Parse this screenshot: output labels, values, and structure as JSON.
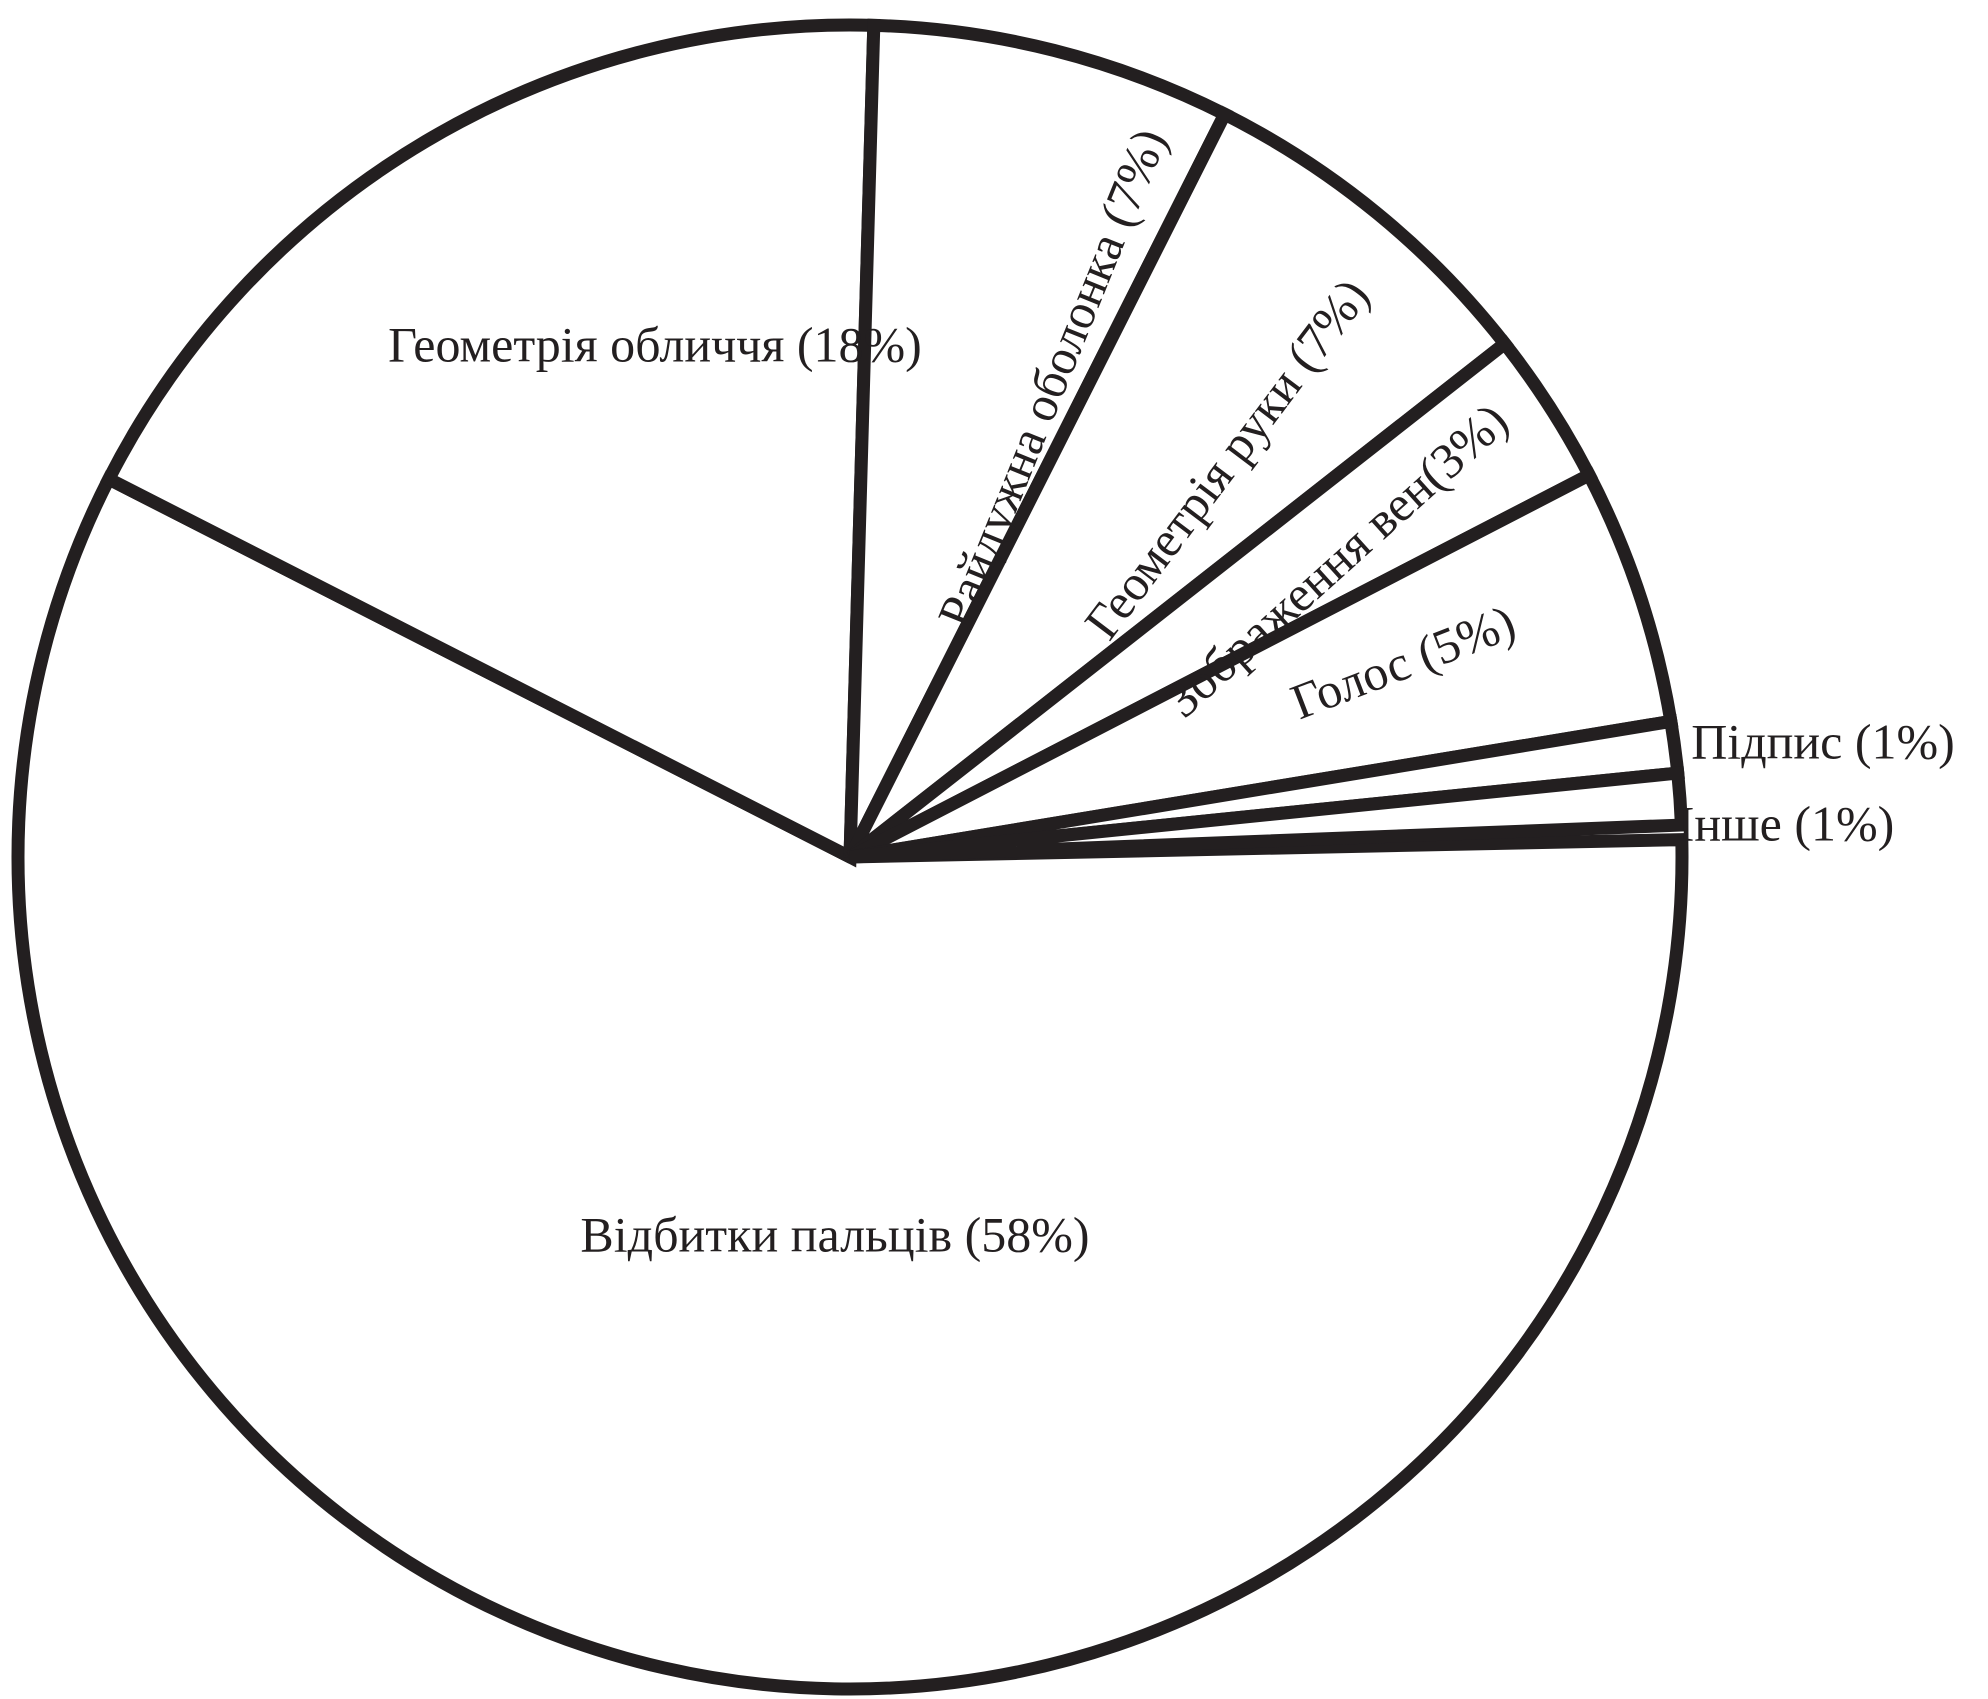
{
  "chart_data": {
    "type": "pie",
    "slices": [
      {
        "label": "Відбитки пальців (58%)",
        "value": 58
      },
      {
        "label": "Геометрія обличчя (18%)",
        "value": 18
      },
      {
        "label": "Райдужна оболонка (7%)",
        "value": 7
      },
      {
        "label": "Геометрія руки (7%)",
        "value": 7
      },
      {
        "label": "Зображення вен(3%)",
        "value": 3
      },
      {
        "label": "Голос (5%)",
        "value": 5
      },
      {
        "label": "Підпис (1%)",
        "value": 1
      },
      {
        "label": "Інше (1%)",
        "value": 1
      }
    ],
    "colors": {
      "fill": "#ffffff",
      "stroke": "#231f20"
    }
  }
}
